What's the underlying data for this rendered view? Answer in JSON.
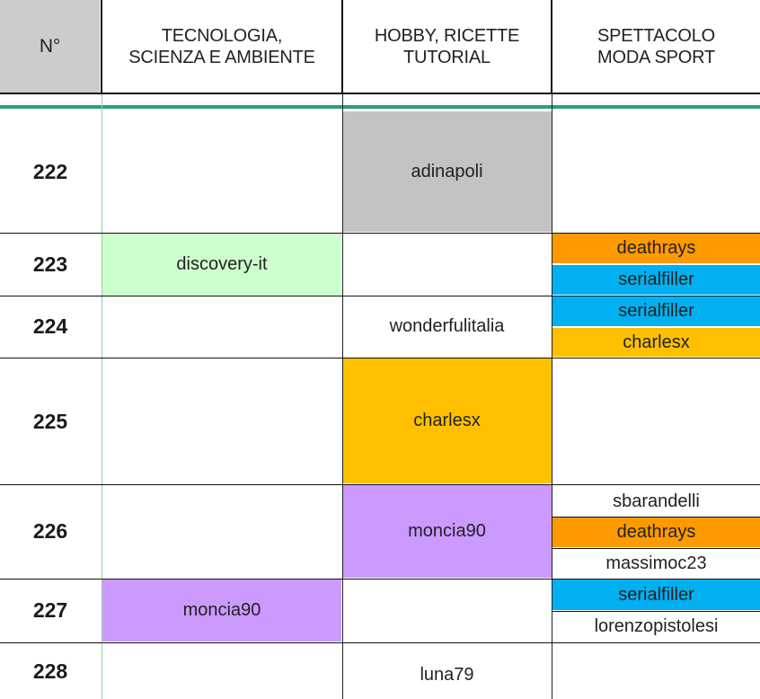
{
  "header": {
    "num_label": "N°",
    "col1": [
      "TECNOLOGIA,",
      "SCIENZA E AMBIENTE"
    ],
    "col2": [
      "HOBBY, RICETTE",
      "TUTORIAL"
    ],
    "col3": [
      "SPETTACOLO",
      "MODA SPORT"
    ]
  },
  "colors": {
    "header_num_bg": "#cccccc",
    "accent_line": "#2e9e77",
    "gray": "#c3c2c5",
    "green": "#ccffcc",
    "orange": "#ff9900",
    "blue": "#00b0f0",
    "yellow": "#ffc000",
    "purple": "#cc99ff"
  },
  "rows": [
    {
      "num": "222",
      "tech": "",
      "hobby": "adinapoli",
      "show": []
    },
    {
      "num": "223",
      "tech": "discovery-it",
      "hobby": "",
      "show": [
        "deathrays",
        "serialfiller"
      ]
    },
    {
      "num": "224",
      "tech": "",
      "hobby": "wonderfulitalia",
      "show": [
        "serialfiller",
        "charlesx"
      ]
    },
    {
      "num": "225",
      "tech": "",
      "hobby": "charlesx",
      "show": []
    },
    {
      "num": "226",
      "tech": "",
      "hobby": "moncia90",
      "show": [
        "sbarandelli",
        "deathrays",
        "massimoc23"
      ]
    },
    {
      "num": "227",
      "tech": "moncia90",
      "hobby": "",
      "show": [
        "serialfiller",
        "lorenzopistolesi"
      ]
    },
    {
      "num": "228",
      "tech": "",
      "hobby": "luna79",
      "show": []
    }
  ]
}
